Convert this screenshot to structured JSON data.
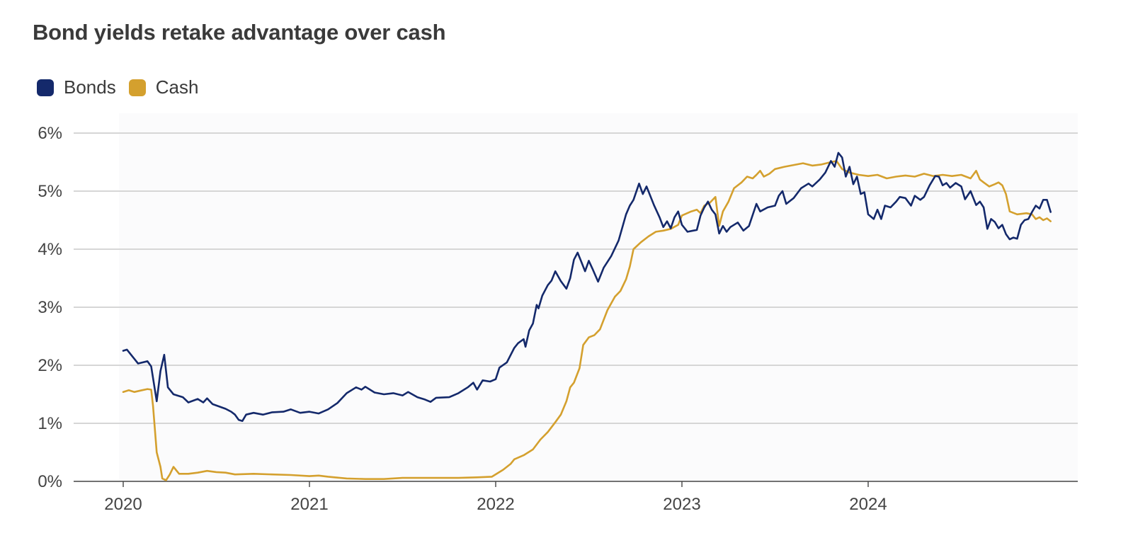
{
  "title": "Bond yields retake advantage over cash",
  "legend": {
    "items": [
      {
        "label": "Bonds",
        "color": "#14296b"
      },
      {
        "label": "Cash",
        "color": "#d4a02e"
      }
    ]
  },
  "chart_data": {
    "type": "line",
    "title": "Bond yields retake advantage over cash",
    "xlabel": "",
    "ylabel": "",
    "xlim": [
      2019.75,
      2025.3
    ],
    "ylim": [
      0,
      6
    ],
    "y_ticks": [
      "0%",
      "1%",
      "2%",
      "3%",
      "4%",
      "5%",
      "6%"
    ],
    "y_tick_values": [
      0,
      1,
      2,
      3,
      4,
      5,
      6
    ],
    "x_ticks": [
      "2020",
      "2021",
      "2022",
      "2023",
      "2024"
    ],
    "x_tick_values": [
      2020,
      2021,
      2022,
      2023,
      2024
    ],
    "grid": true,
    "legend_position": "top-left",
    "series": [
      {
        "name": "Bonds",
        "color": "#14296b",
        "points": [
          [
            2020.0,
            2.25
          ],
          [
            2020.02,
            2.27
          ],
          [
            2020.05,
            2.15
          ],
          [
            2020.08,
            2.03
          ],
          [
            2020.13,
            2.07
          ],
          [
            2020.15,
            1.98
          ],
          [
            2020.18,
            1.38
          ],
          [
            2020.2,
            1.9
          ],
          [
            2020.22,
            2.18
          ],
          [
            2020.24,
            1.62
          ],
          [
            2020.27,
            1.5
          ],
          [
            2020.32,
            1.45
          ],
          [
            2020.35,
            1.36
          ],
          [
            2020.4,
            1.42
          ],
          [
            2020.43,
            1.36
          ],
          [
            2020.45,
            1.43
          ],
          [
            2020.48,
            1.33
          ],
          [
            2020.55,
            1.25
          ],
          [
            2020.58,
            1.2
          ],
          [
            2020.6,
            1.15
          ],
          [
            2020.62,
            1.06
          ],
          [
            2020.64,
            1.04
          ],
          [
            2020.66,
            1.15
          ],
          [
            2020.7,
            1.18
          ],
          [
            2020.75,
            1.15
          ],
          [
            2020.8,
            1.19
          ],
          [
            2020.86,
            1.2
          ],
          [
            2020.9,
            1.24
          ],
          [
            2020.95,
            1.18
          ],
          [
            2021.0,
            1.2
          ],
          [
            2021.05,
            1.17
          ],
          [
            2021.1,
            1.24
          ],
          [
            2021.15,
            1.35
          ],
          [
            2021.2,
            1.52
          ],
          [
            2021.25,
            1.62
          ],
          [
            2021.28,
            1.58
          ],
          [
            2021.3,
            1.63
          ],
          [
            2021.35,
            1.53
          ],
          [
            2021.4,
            1.5
          ],
          [
            2021.45,
            1.52
          ],
          [
            2021.5,
            1.48
          ],
          [
            2021.53,
            1.54
          ],
          [
            2021.58,
            1.45
          ],
          [
            2021.62,
            1.41
          ],
          [
            2021.65,
            1.37
          ],
          [
            2021.68,
            1.44
          ],
          [
            2021.75,
            1.45
          ],
          [
            2021.8,
            1.52
          ],
          [
            2021.85,
            1.62
          ],
          [
            2021.88,
            1.7
          ],
          [
            2021.9,
            1.58
          ],
          [
            2021.93,
            1.74
          ],
          [
            2021.97,
            1.72
          ],
          [
            2022.0,
            1.76
          ],
          [
            2022.02,
            1.96
          ],
          [
            2022.06,
            2.05
          ],
          [
            2022.1,
            2.3
          ],
          [
            2022.12,
            2.38
          ],
          [
            2022.15,
            2.45
          ],
          [
            2022.16,
            2.32
          ],
          [
            2022.18,
            2.6
          ],
          [
            2022.2,
            2.72
          ],
          [
            2022.22,
            3.04
          ],
          [
            2022.23,
            2.98
          ],
          [
            2022.25,
            3.2
          ],
          [
            2022.28,
            3.38
          ],
          [
            2022.3,
            3.46
          ],
          [
            2022.32,
            3.62
          ],
          [
            2022.35,
            3.45
          ],
          [
            2022.38,
            3.32
          ],
          [
            2022.4,
            3.5
          ],
          [
            2022.42,
            3.82
          ],
          [
            2022.44,
            3.94
          ],
          [
            2022.46,
            3.78
          ],
          [
            2022.48,
            3.62
          ],
          [
            2022.5,
            3.8
          ],
          [
            2022.52,
            3.66
          ],
          [
            2022.55,
            3.44
          ],
          [
            2022.58,
            3.68
          ],
          [
            2022.62,
            3.88
          ],
          [
            2022.66,
            4.15
          ],
          [
            2022.7,
            4.6
          ],
          [
            2022.72,
            4.75
          ],
          [
            2022.74,
            4.85
          ],
          [
            2022.77,
            5.13
          ],
          [
            2022.79,
            4.95
          ],
          [
            2022.81,
            5.08
          ],
          [
            2022.85,
            4.76
          ],
          [
            2022.88,
            4.55
          ],
          [
            2022.9,
            4.38
          ],
          [
            2022.92,
            4.48
          ],
          [
            2022.94,
            4.36
          ],
          [
            2022.96,
            4.55
          ],
          [
            2022.98,
            4.65
          ],
          [
            2023.0,
            4.42
          ],
          [
            2023.03,
            4.3
          ],
          [
            2023.06,
            4.32
          ],
          [
            2023.08,
            4.33
          ],
          [
            2023.1,
            4.58
          ],
          [
            2023.12,
            4.72
          ],
          [
            2023.14,
            4.82
          ],
          [
            2023.16,
            4.68
          ],
          [
            2023.18,
            4.6
          ],
          [
            2023.2,
            4.27
          ],
          [
            2023.22,
            4.4
          ],
          [
            2023.24,
            4.3
          ],
          [
            2023.26,
            4.38
          ],
          [
            2023.3,
            4.46
          ],
          [
            2023.33,
            4.32
          ],
          [
            2023.36,
            4.4
          ],
          [
            2023.4,
            4.78
          ],
          [
            2023.42,
            4.65
          ],
          [
            2023.46,
            4.72
          ],
          [
            2023.5,
            4.75
          ],
          [
            2023.52,
            4.92
          ],
          [
            2023.54,
            5.0
          ],
          [
            2023.56,
            4.78
          ],
          [
            2023.6,
            4.88
          ],
          [
            2023.64,
            5.05
          ],
          [
            2023.68,
            5.13
          ],
          [
            2023.7,
            5.08
          ],
          [
            2023.74,
            5.2
          ],
          [
            2023.77,
            5.32
          ],
          [
            2023.8,
            5.52
          ],
          [
            2023.82,
            5.42
          ],
          [
            2023.84,
            5.66
          ],
          [
            2023.86,
            5.58
          ],
          [
            2023.88,
            5.25
          ],
          [
            2023.9,
            5.42
          ],
          [
            2023.92,
            5.12
          ],
          [
            2023.94,
            5.25
          ],
          [
            2023.96,
            4.95
          ],
          [
            2023.98,
            4.98
          ],
          [
            2024.0,
            4.6
          ],
          [
            2024.03,
            4.52
          ],
          [
            2024.05,
            4.68
          ],
          [
            2024.07,
            4.52
          ],
          [
            2024.09,
            4.75
          ],
          [
            2024.12,
            4.72
          ],
          [
            2024.15,
            4.82
          ],
          [
            2024.17,
            4.9
          ],
          [
            2024.2,
            4.88
          ],
          [
            2024.23,
            4.75
          ],
          [
            2024.25,
            4.92
          ],
          [
            2024.28,
            4.85
          ],
          [
            2024.3,
            4.9
          ],
          [
            2024.33,
            5.1
          ],
          [
            2024.36,
            5.26
          ],
          [
            2024.38,
            5.25
          ],
          [
            2024.4,
            5.1
          ],
          [
            2024.42,
            5.14
          ],
          [
            2024.44,
            5.06
          ],
          [
            2024.47,
            5.14
          ],
          [
            2024.5,
            5.08
          ],
          [
            2024.52,
            4.86
          ],
          [
            2024.55,
            5.0
          ],
          [
            2024.58,
            4.76
          ],
          [
            2024.6,
            4.82
          ],
          [
            2024.62,
            4.72
          ],
          [
            2024.64,
            4.35
          ],
          [
            2024.66,
            4.52
          ],
          [
            2024.68,
            4.47
          ],
          [
            2024.7,
            4.36
          ],
          [
            2024.72,
            4.42
          ],
          [
            2024.74,
            4.26
          ],
          [
            2024.76,
            4.17
          ],
          [
            2024.78,
            4.2
          ],
          [
            2024.8,
            4.18
          ],
          [
            2024.82,
            4.42
          ],
          [
            2024.84,
            4.5
          ],
          [
            2024.86,
            4.52
          ],
          [
            2024.88,
            4.64
          ],
          [
            2024.9,
            4.75
          ],
          [
            2024.92,
            4.7
          ],
          [
            2024.94,
            4.85
          ],
          [
            2024.96,
            4.85
          ],
          [
            2024.98,
            4.64
          ]
        ]
      },
      {
        "name": "Cash",
        "color": "#d4a02e",
        "points": [
          [
            2020.0,
            1.54
          ],
          [
            2020.03,
            1.57
          ],
          [
            2020.06,
            1.54
          ],
          [
            2020.1,
            1.57
          ],
          [
            2020.13,
            1.59
          ],
          [
            2020.15,
            1.58
          ],
          [
            2020.16,
            1.3
          ],
          [
            2020.18,
            0.5
          ],
          [
            2020.2,
            0.25
          ],
          [
            2020.21,
            0.05
          ],
          [
            2020.23,
            0.02
          ],
          [
            2020.25,
            0.12
          ],
          [
            2020.27,
            0.25
          ],
          [
            2020.3,
            0.13
          ],
          [
            2020.35,
            0.13
          ],
          [
            2020.4,
            0.15
          ],
          [
            2020.45,
            0.18
          ],
          [
            2020.5,
            0.16
          ],
          [
            2020.55,
            0.15
          ],
          [
            2020.6,
            0.12
          ],
          [
            2020.7,
            0.13
          ],
          [
            2020.8,
            0.12
          ],
          [
            2020.9,
            0.11
          ],
          [
            2021.0,
            0.09
          ],
          [
            2021.05,
            0.1
          ],
          [
            2021.1,
            0.08
          ],
          [
            2021.2,
            0.05
          ],
          [
            2021.3,
            0.04
          ],
          [
            2021.4,
            0.04
          ],
          [
            2021.5,
            0.06
          ],
          [
            2021.6,
            0.06
          ],
          [
            2021.7,
            0.06
          ],
          [
            2021.8,
            0.06
          ],
          [
            2021.9,
            0.07
          ],
          [
            2021.98,
            0.08
          ],
          [
            2022.04,
            0.2
          ],
          [
            2022.08,
            0.3
          ],
          [
            2022.1,
            0.38
          ],
          [
            2022.15,
            0.45
          ],
          [
            2022.2,
            0.55
          ],
          [
            2022.24,
            0.72
          ],
          [
            2022.28,
            0.85
          ],
          [
            2022.32,
            1.02
          ],
          [
            2022.35,
            1.15
          ],
          [
            2022.38,
            1.38
          ],
          [
            2022.4,
            1.62
          ],
          [
            2022.42,
            1.7
          ],
          [
            2022.45,
            1.95
          ],
          [
            2022.47,
            2.35
          ],
          [
            2022.5,
            2.48
          ],
          [
            2022.53,
            2.52
          ],
          [
            2022.56,
            2.62
          ],
          [
            2022.6,
            2.95
          ],
          [
            2022.64,
            3.18
          ],
          [
            2022.67,
            3.28
          ],
          [
            2022.7,
            3.48
          ],
          [
            2022.72,
            3.7
          ],
          [
            2022.74,
            4.0
          ],
          [
            2022.78,
            4.12
          ],
          [
            2022.82,
            4.22
          ],
          [
            2022.86,
            4.3
          ],
          [
            2022.9,
            4.32
          ],
          [
            2022.94,
            4.35
          ],
          [
            2022.98,
            4.42
          ],
          [
            2023.0,
            4.58
          ],
          [
            2023.05,
            4.65
          ],
          [
            2023.08,
            4.68
          ],
          [
            2023.1,
            4.62
          ],
          [
            2023.12,
            4.75
          ],
          [
            2023.15,
            4.8
          ],
          [
            2023.18,
            4.9
          ],
          [
            2023.2,
            4.4
          ],
          [
            2023.22,
            4.65
          ],
          [
            2023.25,
            4.82
          ],
          [
            2023.28,
            5.05
          ],
          [
            2023.32,
            5.15
          ],
          [
            2023.35,
            5.25
          ],
          [
            2023.38,
            5.22
          ],
          [
            2023.4,
            5.28
          ],
          [
            2023.42,
            5.35
          ],
          [
            2023.44,
            5.25
          ],
          [
            2023.47,
            5.3
          ],
          [
            2023.5,
            5.38
          ],
          [
            2023.55,
            5.42
          ],
          [
            2023.6,
            5.45
          ],
          [
            2023.65,
            5.48
          ],
          [
            2023.7,
            5.44
          ],
          [
            2023.75,
            5.46
          ],
          [
            2023.8,
            5.5
          ],
          [
            2023.83,
            5.52
          ],
          [
            2023.86,
            5.38
          ],
          [
            2023.9,
            5.32
          ],
          [
            2023.95,
            5.28
          ],
          [
            2024.0,
            5.26
          ],
          [
            2024.05,
            5.28
          ],
          [
            2024.1,
            5.22
          ],
          [
            2024.15,
            5.25
          ],
          [
            2024.2,
            5.27
          ],
          [
            2024.25,
            5.25
          ],
          [
            2024.3,
            5.3
          ],
          [
            2024.35,
            5.26
          ],
          [
            2024.4,
            5.28
          ],
          [
            2024.45,
            5.26
          ],
          [
            2024.5,
            5.28
          ],
          [
            2024.55,
            5.22
          ],
          [
            2024.58,
            5.35
          ],
          [
            2024.6,
            5.2
          ],
          [
            2024.62,
            5.15
          ],
          [
            2024.65,
            5.08
          ],
          [
            2024.68,
            5.12
          ],
          [
            2024.7,
            5.15
          ],
          [
            2024.72,
            5.1
          ],
          [
            2024.74,
            4.95
          ],
          [
            2024.76,
            4.65
          ],
          [
            2024.8,
            4.6
          ],
          [
            2024.85,
            4.62
          ],
          [
            2024.88,
            4.6
          ],
          [
            2024.9,
            4.52
          ],
          [
            2024.92,
            4.55
          ],
          [
            2024.94,
            4.5
          ],
          [
            2024.96,
            4.53
          ],
          [
            2024.98,
            4.48
          ]
        ]
      }
    ]
  }
}
